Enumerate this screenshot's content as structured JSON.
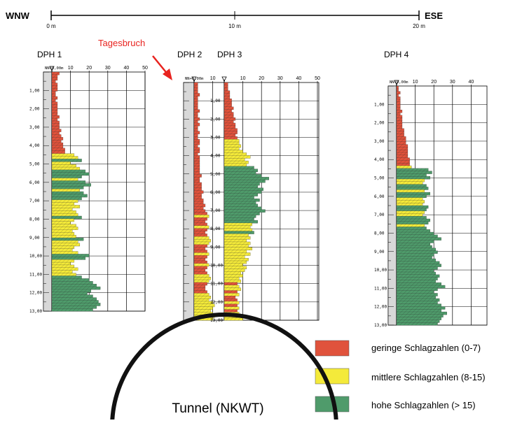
{
  "scale": {
    "left_label": "WNW",
    "right_label": "ESE",
    "ticks": [
      "0 m",
      "10 m",
      "20 m"
    ]
  },
  "annotation": {
    "label": "Tagesbruch",
    "color": "#e8231f"
  },
  "colors": {
    "low": "#e0533c",
    "mid": "#f4ea3a",
    "high": "#4f9b6b"
  },
  "legend": [
    {
      "key": "low",
      "label": "geringe Schlagzahlen (0-7)"
    },
    {
      "key": "mid",
      "label": "mittlere Schlagzahlen (8-15)"
    },
    {
      "key": "high",
      "label": "hohe Schlagzahlen (> 15)"
    }
  ],
  "tunnel": {
    "label": "Tunnel (NKWT)"
  },
  "probes": [
    {
      "name": "DPH 1",
      "top_label": "NN+0,00m",
      "x_ticks": [
        "10",
        "20",
        "30",
        "40",
        "50"
      ],
      "depth_labels": [
        "1,00",
        "2,00",
        "3,00",
        "4,00",
        "5,00",
        "6,00",
        "7,00",
        "8,00",
        "9,00",
        "10,00",
        "11,00",
        "12,00",
        "13,00"
      ],
      "values": [
        4,
        3,
        3,
        2,
        3,
        3,
        3,
        2,
        2,
        3,
        2,
        3,
        3,
        3,
        3,
        3,
        4,
        3,
        4,
        4,
        4,
        5,
        4,
        5,
        6,
        5,
        6,
        6,
        7,
        7,
        12,
        14,
        16,
        10,
        13,
        15,
        18,
        20,
        16,
        14,
        18,
        21,
        17,
        15,
        17,
        19,
        16,
        14,
        12,
        15,
        11,
        13,
        14,
        16,
        12,
        10,
        13,
        14,
        11,
        12,
        13,
        17,
        14,
        15,
        12,
        11,
        14,
        20,
        18,
        12,
        10,
        12,
        14,
        11,
        13,
        16,
        20,
        22,
        24,
        26,
        21,
        19,
        22,
        24,
        25,
        26,
        24,
        22
      ]
    },
    {
      "name": "DPH 2",
      "top_label": "NN+0,00m",
      "x_ticks": [
        "10",
        "20"
      ],
      "values": [
        2,
        2,
        2,
        2,
        3,
        2,
        2,
        2,
        2,
        2,
        3,
        2,
        2,
        3,
        2,
        3,
        2,
        2,
        3,
        2,
        2,
        3,
        3,
        2,
        3,
        3,
        2,
        3,
        3,
        3,
        3,
        3,
        3,
        3,
        4,
        3,
        3,
        4,
        4,
        4,
        5,
        4,
        4,
        5,
        5,
        6,
        5,
        6,
        7,
        8,
        7,
        6,
        7,
        8,
        7,
        6,
        7,
        8,
        9,
        8,
        7,
        6,
        7,
        8,
        7,
        6,
        7,
        8,
        7,
        6,
        7,
        8,
        9,
        8,
        7,
        6,
        6,
        7,
        8,
        9,
        8,
        10,
        11,
        10,
        9,
        10,
        11,
        10
      ]
    },
    {
      "name": "DPH 3",
      "top_label": "",
      "x_ticks": [
        "10",
        "20",
        "30",
        "40",
        "50"
      ],
      "depth_labels": [
        "1,00",
        "2,00",
        "3,00",
        "4,00",
        "5,00",
        "6,00",
        "7,00",
        "8,00",
        "9,00",
        "10,00",
        "11,00",
        "12,00",
        "13,00"
      ],
      "values": [
        2,
        2,
        2,
        3,
        3,
        3,
        4,
        4,
        4,
        5,
        4,
        5,
        5,
        6,
        5,
        6,
        6,
        7,
        7,
        6,
        7,
        8,
        8,
        9,
        8,
        10,
        12,
        14,
        11,
        13,
        12,
        16,
        18,
        17,
        20,
        24,
        22,
        19,
        18,
        21,
        20,
        18,
        16,
        19,
        17,
        18,
        20,
        22,
        19,
        17,
        16,
        18,
        15,
        14,
        15,
        16,
        13,
        14,
        12,
        14,
        13,
        15,
        12,
        14,
        11,
        13,
        12,
        10,
        12,
        11,
        9,
        10,
        8,
        9,
        7,
        8,
        9,
        7,
        8,
        6,
        7,
        8,
        7,
        8,
        7,
        8,
        9,
        10
      ]
    },
    {
      "name": "DPH 4",
      "top_label": "NN+0,00m",
      "x_ticks": [
        "10",
        "20",
        "30",
        "40",
        "50"
      ],
      "depth_labels": [
        "1,00",
        "2,00",
        "3,00",
        "4,00",
        "5,00",
        "6,00",
        "7,00",
        "8,00",
        "9,00",
        "10,00",
        "11,00",
        "12,00",
        "13,00"
      ],
      "values": [
        1,
        1,
        2,
        1,
        2,
        2,
        2,
        2,
        2,
        3,
        2,
        3,
        3,
        3,
        3,
        3,
        4,
        4,
        4,
        5,
        5,
        5,
        6,
        6,
        6,
        6,
        6,
        7,
        7,
        7,
        8,
        17,
        19,
        16,
        18,
        15,
        14,
        16,
        17,
        15,
        18,
        16,
        14,
        15,
        14,
        17,
        16,
        15,
        14,
        16,
        18,
        17,
        15,
        16,
        18,
        20,
        22,
        24,
        20,
        18,
        19,
        21,
        22,
        20,
        19,
        21,
        23,
        24,
        22,
        20,
        21,
        23,
        22,
        21,
        24,
        26,
        22,
        20,
        22,
        21,
        23,
        22,
        24,
        26,
        24,
        27,
        25,
        24,
        23,
        22
      ]
    }
  ]
}
